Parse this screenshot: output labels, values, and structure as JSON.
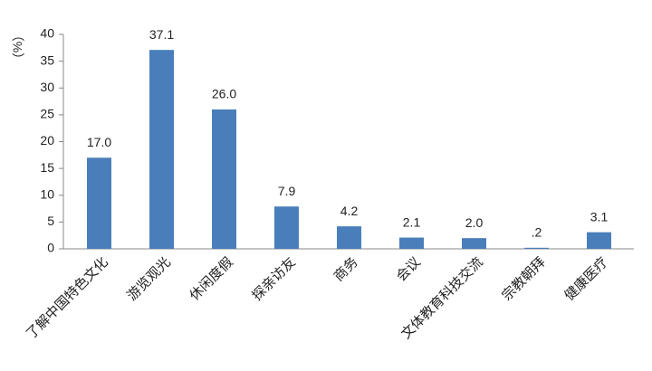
{
  "chart_data": {
    "type": "bar",
    "y_label": "（%）",
    "categories": [
      "了解中国特色文化",
      "游览观光",
      "休闲度假",
      "探亲访友",
      "商务",
      "会议",
      "文体教育科技交流",
      "宗教朝拜",
      "健康医疗"
    ],
    "values": [
      17.0,
      37.1,
      26.0,
      7.9,
      4.2,
      2.1,
      2.0,
      0.2,
      3.1
    ],
    "value_labels": [
      "17.0",
      "37.1",
      "26.0",
      "7.9",
      "4.2",
      "2.1",
      "2.0",
      ".2",
      "3.1"
    ],
    "color": "#4a7ebb",
    "ylim": [
      0,
      40
    ],
    "yticks": [
      0,
      5,
      10,
      15,
      20,
      25,
      30,
      35,
      40
    ],
    "grid": false
  }
}
